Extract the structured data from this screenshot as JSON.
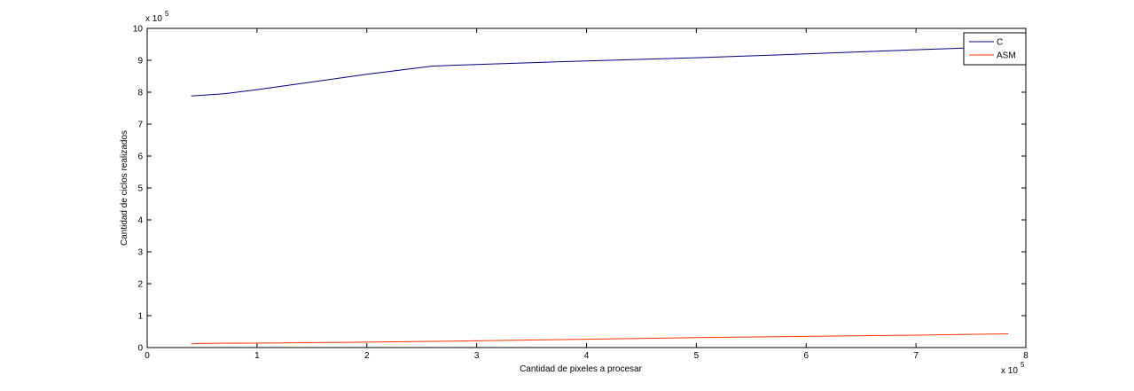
{
  "chart_data": {
    "type": "line",
    "title": "",
    "xlabel": "Cantidad de pixeles a procesar",
    "ylabel": "Cantidad de ciclos realizados",
    "x_multiplier_label": "x 10",
    "x_multiplier_exp": "5",
    "y_multiplier_label": "x 10",
    "y_multiplier_exp": "5",
    "xlim": [
      0,
      8
    ],
    "ylim": [
      0,
      10
    ],
    "xticks": [
      0,
      1,
      2,
      3,
      4,
      5,
      6,
      7,
      8
    ],
    "yticks": [
      0,
      1,
      2,
      3,
      4,
      5,
      6,
      7,
      8,
      9,
      10
    ],
    "grid": false,
    "legend_position": "top-right",
    "series": [
      {
        "name": "C",
        "color": "#00007f",
        "x": [
          0.4,
          0.7,
          1.0,
          1.5,
          2.0,
          2.6,
          3.0,
          4.0,
          5.0,
          6.0,
          7.0,
          7.84
        ],
        "y": [
          7.88,
          7.95,
          8.08,
          8.32,
          8.56,
          8.82,
          8.87,
          8.98,
          9.08,
          9.2,
          9.33,
          9.43
        ]
      },
      {
        "name": "ASM",
        "color": "#ff3300",
        "x": [
          0.4,
          0.5,
          1.0,
          2.0,
          3.0,
          4.0,
          5.0,
          6.0,
          7.0,
          7.84
        ],
        "y": [
          0.12,
          0.13,
          0.14,
          0.17,
          0.21,
          0.26,
          0.31,
          0.35,
          0.39,
          0.43
        ]
      }
    ]
  }
}
